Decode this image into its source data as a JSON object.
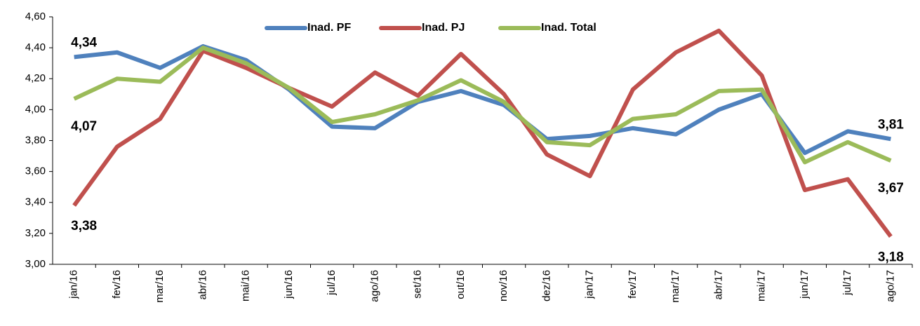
{
  "chart_data": {
    "type": "line",
    "categories": [
      "jan/16",
      "fev/16",
      "mar/16",
      "abr/16",
      "mai/16",
      "jun/16",
      "jul/16",
      "ago/16",
      "set/16",
      "out/16",
      "nov/16",
      "dez/16",
      "jan/17",
      "fev/17",
      "mar/17",
      "abr/17",
      "mai/17",
      "jun/17",
      "jul/17",
      "ago/17"
    ],
    "series": [
      {
        "name": "Inad. PF",
        "color": "#4f81bd",
        "values": [
          4.34,
          4.37,
          4.27,
          4.41,
          4.32,
          4.13,
          3.89,
          3.88,
          4.05,
          4.12,
          4.03,
          3.81,
          3.83,
          3.88,
          3.84,
          4.0,
          4.1,
          3.72,
          3.86,
          3.81
        ],
        "value_labels": [
          "4,34",
          null,
          null,
          null,
          null,
          null,
          null,
          null,
          null,
          null,
          null,
          null,
          null,
          null,
          null,
          null,
          null,
          null,
          null,
          "3,81"
        ]
      },
      {
        "name": "Inad. PJ",
        "color": "#c0504d",
        "values": [
          3.38,
          3.76,
          3.94,
          4.38,
          4.27,
          4.14,
          4.02,
          4.24,
          4.09,
          4.36,
          4.1,
          3.71,
          3.57,
          4.13,
          4.37,
          4.51,
          4.22,
          3.48,
          3.55,
          3.18
        ],
        "value_labels": [
          "3,38",
          null,
          null,
          null,
          null,
          null,
          null,
          null,
          null,
          null,
          null,
          null,
          null,
          null,
          null,
          null,
          null,
          null,
          null,
          "3,18"
        ]
      },
      {
        "name": "Inad. Total",
        "color": "#9bbb59",
        "values": [
          4.07,
          4.2,
          4.18,
          4.4,
          4.3,
          4.14,
          3.92,
          3.97,
          4.06,
          4.19,
          4.05,
          3.79,
          3.77,
          3.94,
          3.97,
          4.12,
          4.13,
          3.66,
          3.79,
          3.67
        ],
        "value_labels": [
          "4,07",
          null,
          null,
          null,
          null,
          null,
          null,
          null,
          null,
          null,
          null,
          null,
          null,
          null,
          null,
          null,
          null,
          null,
          null,
          "3,67"
        ]
      }
    ],
    "ylim": [
      3.0,
      4.6
    ],
    "yticks": [
      {
        "value": 3.0,
        "label": "3,00"
      },
      {
        "value": 3.2,
        "label": "3,20"
      },
      {
        "value": 3.4,
        "label": "3,40"
      },
      {
        "value": 3.6,
        "label": "3,60"
      },
      {
        "value": 3.8,
        "label": "3,80"
      },
      {
        "value": 4.0,
        "label": "4,00"
      },
      {
        "value": 4.2,
        "label": "4,20"
      },
      {
        "value": 4.4,
        "label": "4,40"
      },
      {
        "value": 4.6,
        "label": "4,60"
      }
    ],
    "grid": false,
    "legend": "top"
  }
}
